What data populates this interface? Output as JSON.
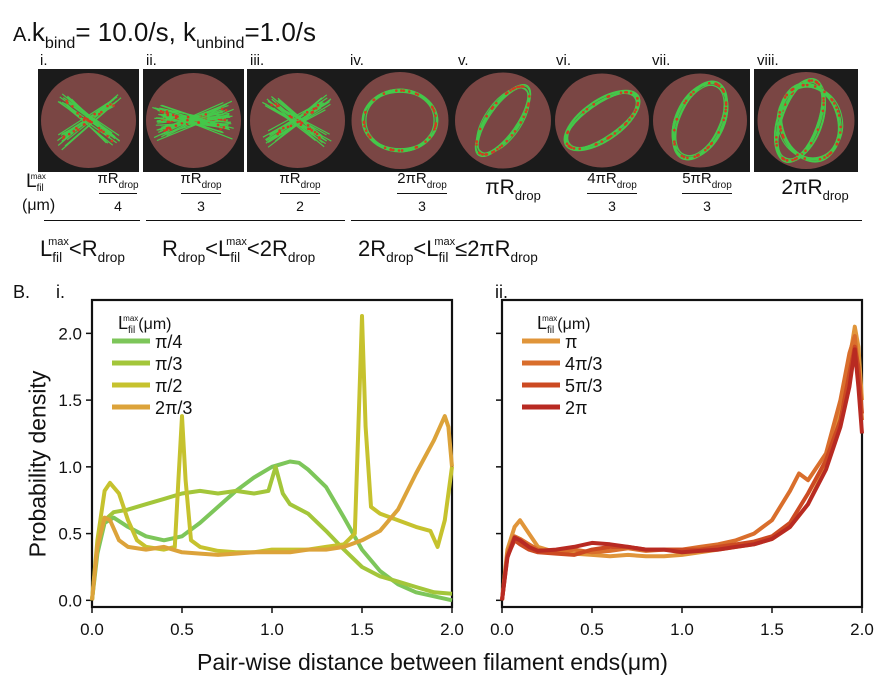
{
  "panel_a": {
    "letter": "A.",
    "title_k": "k",
    "title_bind_sub": "bind",
    "title_mid": "= 10.0/s, k",
    "title_unbind_sub": "unbind",
    "title_end": "=1.0/s",
    "roman": [
      "i.",
      "ii.",
      "iii.",
      "iv.",
      "v.",
      "vi.",
      "vii.",
      "viii."
    ],
    "lfil_label": {
      "L": "L",
      "sub": "fil",
      "sup": "max",
      "unit": "(μm)"
    },
    "fractions": [
      {
        "num": "πR",
        "num_sub": "drop",
        "den": "4"
      },
      {
        "num": "πR",
        "num_sub": "drop",
        "den": "3"
      },
      {
        "num": "πR",
        "num_sub": "drop",
        "den": "2"
      },
      {
        "num": "2πR",
        "num_sub": "drop",
        "den": "3"
      },
      {
        "plain": "πR",
        "plain_sub": "drop"
      },
      {
        "num": "4πR",
        "num_sub": "drop",
        "den": "3"
      },
      {
        "num": "5πR",
        "num_sub": "drop",
        "den": "3"
      },
      {
        "plain": "2πR",
        "plain_sub": "drop"
      }
    ],
    "ranges": [
      {
        "p1": "L",
        "s1": "fil",
        "sup1": "max",
        "p2": "<R",
        "s2": "drop"
      },
      {
        "p1": "R",
        "s1": "drop",
        "p2": "<L",
        "s2": "fil",
        "sup2": "max",
        "p3": "<2R",
        "s3": "drop"
      },
      {
        "p1": "2R",
        "s1": "drop",
        "p2": "<L",
        "s2": "fil",
        "sup2": "max",
        "p3": "≤2πR",
        "s3": "drop"
      }
    ]
  },
  "panel_b": {
    "letter": "B.",
    "sub_i": "i.",
    "sub_ii": "ii.",
    "ylabel": "Probability density",
    "xlabel": "Pair-wise distance between filament ends(μm)",
    "legend_title": {
      "L": "L",
      "sub": "fil",
      "sup": "max",
      "unit": "(μm)"
    }
  },
  "colors": {
    "pi_4": "#7dc65a",
    "pi_3": "#a3c63a",
    "pi_2": "#c6c22e",
    "2pi_3": "#dca33a",
    "pi": "#e0953a",
    "4pi_3": "#d96e2c",
    "5pi_3": "#cc4a22",
    "2pi": "#b82a22",
    "droplet": "#7a4644",
    "filament": "#45c84a",
    "motor": "#d23a22",
    "box": "#1b1b1b"
  },
  "chart_data": [
    {
      "type": "line",
      "title": "",
      "xlabel": "Pair-wise distance between filament ends(μm)",
      "ylabel": "Probability density",
      "xlim": [
        0,
        2
      ],
      "ylim": [
        -0.05,
        2.25
      ],
      "xticks": [
        "0.0",
        "0.5",
        "1.0",
        "1.5",
        "2.0"
      ],
      "yticks": [
        "0.0",
        "0.5",
        "1.0",
        "1.5",
        "2.0"
      ],
      "legend": "top-left",
      "series": [
        {
          "name": "π/4",
          "color": "#7dc65a",
          "points": [
            [
              0.0,
              0.0
            ],
            [
              0.03,
              0.35
            ],
            [
              0.07,
              0.58
            ],
            [
              0.12,
              0.62
            ],
            [
              0.2,
              0.55
            ],
            [
              0.3,
              0.48
            ],
            [
              0.4,
              0.45
            ],
            [
              0.5,
              0.48
            ],
            [
              0.6,
              0.58
            ],
            [
              0.7,
              0.7
            ],
            [
              0.8,
              0.82
            ],
            [
              0.9,
              0.92
            ],
            [
              1.0,
              1.0
            ],
            [
              1.05,
              1.02
            ],
            [
              1.1,
              1.04
            ],
            [
              1.15,
              1.03
            ],
            [
              1.2,
              0.98
            ],
            [
              1.3,
              0.85
            ],
            [
              1.4,
              0.62
            ],
            [
              1.5,
              0.38
            ],
            [
              1.6,
              0.22
            ],
            [
              1.7,
              0.12
            ],
            [
              1.8,
              0.06
            ],
            [
              1.9,
              0.03
            ],
            [
              2.0,
              0.0
            ]
          ]
        },
        {
          "name": "π/3",
          "color": "#a3c63a",
          "points": [
            [
              0.0,
              0.0
            ],
            [
              0.03,
              0.4
            ],
            [
              0.07,
              0.6
            ],
            [
              0.12,
              0.66
            ],
            [
              0.2,
              0.68
            ],
            [
              0.3,
              0.72
            ],
            [
              0.4,
              0.76
            ],
            [
              0.5,
              0.8
            ],
            [
              0.6,
              0.82
            ],
            [
              0.7,
              0.8
            ],
            [
              0.8,
              0.82
            ],
            [
              0.9,
              0.8
            ],
            [
              0.98,
              0.82
            ],
            [
              1.02,
              1.0
            ],
            [
              1.06,
              0.8
            ],
            [
              1.1,
              0.72
            ],
            [
              1.2,
              0.65
            ],
            [
              1.3,
              0.52
            ],
            [
              1.4,
              0.38
            ],
            [
              1.5,
              0.25
            ],
            [
              1.6,
              0.18
            ],
            [
              1.7,
              0.14
            ],
            [
              1.8,
              0.1
            ],
            [
              1.9,
              0.06
            ],
            [
              2.0,
              0.05
            ]
          ]
        },
        {
          "name": "π/2",
          "color": "#c6c22e",
          "points": [
            [
              0.0,
              0.0
            ],
            [
              0.03,
              0.45
            ],
            [
              0.07,
              0.82
            ],
            [
              0.1,
              0.88
            ],
            [
              0.15,
              0.8
            ],
            [
              0.2,
              0.6
            ],
            [
              0.25,
              0.45
            ],
            [
              0.3,
              0.4
            ],
            [
              0.4,
              0.38
            ],
            [
              0.46,
              0.4
            ],
            [
              0.48,
              0.9
            ],
            [
              0.5,
              1.38
            ],
            [
              0.52,
              0.9
            ],
            [
              0.55,
              0.45
            ],
            [
              0.6,
              0.4
            ],
            [
              0.7,
              0.37
            ],
            [
              0.8,
              0.36
            ],
            [
              0.9,
              0.36
            ],
            [
              1.0,
              0.38
            ],
            [
              1.1,
              0.38
            ],
            [
              1.2,
              0.38
            ],
            [
              1.3,
              0.4
            ],
            [
              1.4,
              0.42
            ],
            [
              1.46,
              0.5
            ],
            [
              1.48,
              1.3
            ],
            [
              1.5,
              2.13
            ],
            [
              1.52,
              1.3
            ],
            [
              1.55,
              0.7
            ],
            [
              1.6,
              0.65
            ],
            [
              1.7,
              0.6
            ],
            [
              1.8,
              0.55
            ],
            [
              1.88,
              0.52
            ],
            [
              1.92,
              0.4
            ],
            [
              1.96,
              0.6
            ],
            [
              2.0,
              1.0
            ]
          ]
        },
        {
          "name": "2π/3",
          "color": "#dca33a",
          "points": [
            [
              0.0,
              0.0
            ],
            [
              0.03,
              0.4
            ],
            [
              0.07,
              0.62
            ],
            [
              0.1,
              0.6
            ],
            [
              0.15,
              0.45
            ],
            [
              0.2,
              0.4
            ],
            [
              0.3,
              0.38
            ],
            [
              0.4,
              0.4
            ],
            [
              0.5,
              0.36
            ],
            [
              0.6,
              0.35
            ],
            [
              0.7,
              0.34
            ],
            [
              0.8,
              0.35
            ],
            [
              0.9,
              0.36
            ],
            [
              1.0,
              0.36
            ],
            [
              1.1,
              0.36
            ],
            [
              1.2,
              0.38
            ],
            [
              1.3,
              0.38
            ],
            [
              1.4,
              0.4
            ],
            [
              1.5,
              0.45
            ],
            [
              1.6,
              0.52
            ],
            [
              1.7,
              0.68
            ],
            [
              1.8,
              0.95
            ],
            [
              1.9,
              1.2
            ],
            [
              1.96,
              1.38
            ],
            [
              1.98,
              1.3
            ],
            [
              2.0,
              1.0
            ]
          ]
        }
      ]
    },
    {
      "type": "line",
      "title": "",
      "xlabel": "Pair-wise distance between filament ends(μm)",
      "ylabel": "",
      "xlim": [
        0,
        2
      ],
      "ylim": [
        -0.05,
        2.25
      ],
      "xticks": [
        "0.0",
        "0.5",
        "1.0",
        "1.5",
        "2.0"
      ],
      "legend": "top-left",
      "series": [
        {
          "name": "π",
          "color": "#e0953a",
          "points": [
            [
              0.0,
              0.0
            ],
            [
              0.03,
              0.38
            ],
            [
              0.07,
              0.55
            ],
            [
              0.1,
              0.6
            ],
            [
              0.15,
              0.5
            ],
            [
              0.2,
              0.4
            ],
            [
              0.3,
              0.36
            ],
            [
              0.4,
              0.35
            ],
            [
              0.5,
              0.34
            ],
            [
              0.6,
              0.33
            ],
            [
              0.7,
              0.34
            ],
            [
              0.8,
              0.33
            ],
            [
              0.9,
              0.33
            ],
            [
              1.0,
              0.34
            ],
            [
              1.1,
              0.36
            ],
            [
              1.2,
              0.38
            ],
            [
              1.3,
              0.4
            ],
            [
              1.4,
              0.42
            ],
            [
              1.5,
              0.46
            ],
            [
              1.6,
              0.55
            ],
            [
              1.7,
              0.72
            ],
            [
              1.8,
              1.0
            ],
            [
              1.88,
              1.4
            ],
            [
              1.93,
              1.8
            ],
            [
              1.96,
              2.05
            ],
            [
              1.98,
              1.9
            ],
            [
              2.0,
              1.5
            ]
          ]
        },
        {
          "name": "4π/3",
          "color": "#d96e2c",
          "points": [
            [
              0.0,
              0.0
            ],
            [
              0.03,
              0.35
            ],
            [
              0.07,
              0.48
            ],
            [
              0.1,
              0.46
            ],
            [
              0.15,
              0.42
            ],
            [
              0.2,
              0.38
            ],
            [
              0.3,
              0.36
            ],
            [
              0.4,
              0.38
            ],
            [
              0.5,
              0.36
            ],
            [
              0.6,
              0.37
            ],
            [
              0.7,
              0.39
            ],
            [
              0.8,
              0.37
            ],
            [
              0.9,
              0.38
            ],
            [
              1.0,
              0.38
            ],
            [
              1.1,
              0.4
            ],
            [
              1.2,
              0.42
            ],
            [
              1.3,
              0.45
            ],
            [
              1.4,
              0.5
            ],
            [
              1.5,
              0.6
            ],
            [
              1.6,
              0.82
            ],
            [
              1.65,
              0.95
            ],
            [
              1.7,
              0.9
            ],
            [
              1.8,
              1.1
            ],
            [
              1.88,
              1.5
            ],
            [
              1.93,
              1.85
            ],
            [
              1.96,
              1.98
            ],
            [
              1.98,
              1.7
            ],
            [
              2.0,
              1.35
            ]
          ]
        },
        {
          "name": "5π/3",
          "color": "#cc4a22",
          "points": [
            [
              0.0,
              0.0
            ],
            [
              0.03,
              0.33
            ],
            [
              0.07,
              0.45
            ],
            [
              0.1,
              0.42
            ],
            [
              0.15,
              0.38
            ],
            [
              0.2,
              0.36
            ],
            [
              0.3,
              0.35
            ],
            [
              0.4,
              0.34
            ],
            [
              0.5,
              0.38
            ],
            [
              0.6,
              0.4
            ],
            [
              0.7,
              0.4
            ],
            [
              0.8,
              0.38
            ],
            [
              0.9,
              0.38
            ],
            [
              1.0,
              0.38
            ],
            [
              1.1,
              0.38
            ],
            [
              1.2,
              0.4
            ],
            [
              1.3,
              0.42
            ],
            [
              1.4,
              0.44
            ],
            [
              1.5,
              0.48
            ],
            [
              1.6,
              0.58
            ],
            [
              1.7,
              0.8
            ],
            [
              1.8,
              1.05
            ],
            [
              1.88,
              1.35
            ],
            [
              1.93,
              1.7
            ],
            [
              1.96,
              1.9
            ],
            [
              1.98,
              1.75
            ],
            [
              2.0,
              1.4
            ]
          ]
        },
        {
          "name": "2π",
          "color": "#b82a22",
          "points": [
            [
              0.0,
              0.0
            ],
            [
              0.03,
              0.32
            ],
            [
              0.07,
              0.47
            ],
            [
              0.1,
              0.45
            ],
            [
              0.15,
              0.4
            ],
            [
              0.2,
              0.37
            ],
            [
              0.3,
              0.38
            ],
            [
              0.4,
              0.4
            ],
            [
              0.5,
              0.43
            ],
            [
              0.6,
              0.42
            ],
            [
              0.7,
              0.4
            ],
            [
              0.8,
              0.38
            ],
            [
              0.9,
              0.38
            ],
            [
              1.0,
              0.36
            ],
            [
              1.1,
              0.37
            ],
            [
              1.2,
              0.38
            ],
            [
              1.3,
              0.4
            ],
            [
              1.4,
              0.42
            ],
            [
              1.5,
              0.46
            ],
            [
              1.6,
              0.55
            ],
            [
              1.7,
              0.72
            ],
            [
              1.8,
              0.98
            ],
            [
              1.88,
              1.3
            ],
            [
              1.93,
              1.6
            ],
            [
              1.96,
              1.88
            ],
            [
              1.98,
              1.6
            ],
            [
              2.0,
              1.25
            ]
          ]
        }
      ]
    }
  ]
}
